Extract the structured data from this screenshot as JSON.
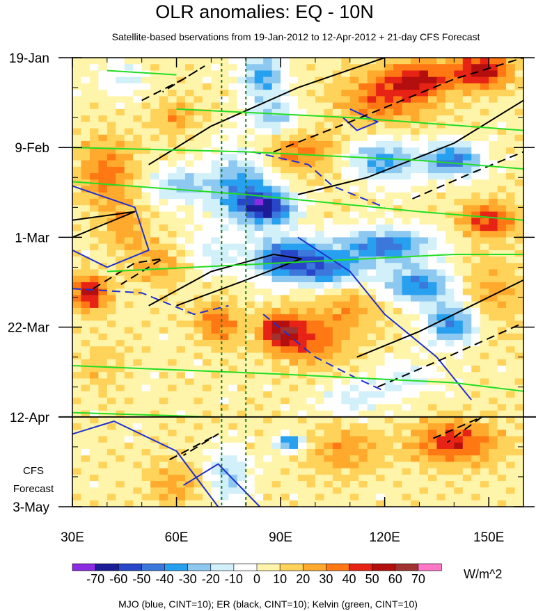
{
  "chart_data": {
    "type": "heatmap",
    "title": "OLR anomalies: EQ - 10N",
    "subtitle": "Satellite-based bservations from 19-Jan-2012 to 12-Apr-2012 + 21-day CFS Forecast",
    "x_axis": {
      "range": [
        30,
        160
      ],
      "ticks": [
        {
          "value": 30,
          "label": "30E"
        },
        {
          "value": 60,
          "label": "60E"
        },
        {
          "value": 90,
          "label": "90E"
        },
        {
          "value": 120,
          "label": "120E"
        },
        {
          "value": 150,
          "label": "150E"
        }
      ],
      "minor_step": 10
    },
    "y_axis": {
      "range_days": [
        0,
        105
      ],
      "direction": "downward",
      "ticks": [
        {
          "day": 0,
          "label": "19-Jan"
        },
        {
          "day": 21,
          "label": "9-Feb"
        },
        {
          "day": 42,
          "label": "1-Mar"
        },
        {
          "day": 63,
          "label": "22-Mar"
        },
        {
          "day": 84,
          "label": "12-Apr"
        },
        {
          "day": 105,
          "label": "3-May"
        }
      ],
      "minor_step_days": 7
    },
    "forecast_start_day": 84,
    "forecast_label_lines": [
      "CFS",
      "Forecast"
    ],
    "vertical_reference_lines": [
      73,
      80
    ],
    "colorbar": {
      "levels": [
        -70,
        -60,
        -50,
        -40,
        -30,
        -20,
        -10,
        0,
        10,
        20,
        30,
        40,
        50,
        60,
        70
      ],
      "colors": [
        "#8b2be2",
        "#1c1c96",
        "#2846c8",
        "#3c78dc",
        "#28a0f0",
        "#8cc8f0",
        "#d2f0fa",
        "#ffffff",
        "#fff5aa",
        "#ffd25a",
        "#ffaa2d",
        "#ff7814",
        "#e62314",
        "#b40f0f",
        "#a03232",
        "#ff78c8"
      ],
      "units": "W/m^2"
    },
    "footer": "MJO (blue, CINT=10); ER (black, CINT=10); Kelvin (green, CINT=10)",
    "anomaly_blobs": [
      {
        "lon": 35,
        "day": 55,
        "rlon": 5,
        "rday": 4,
        "value": 50
      },
      {
        "lon": 40,
        "day": 27,
        "rlon": 8,
        "rday": 8,
        "value": 30
      },
      {
        "lon": 45,
        "day": 40,
        "rlon": 6,
        "rday": 5,
        "value": 20
      },
      {
        "lon": 60,
        "day": 14,
        "rlon": 6,
        "rday": 4,
        "value": 20
      },
      {
        "lon": 55,
        "day": 48,
        "rlon": 8,
        "rday": 5,
        "value": 20
      },
      {
        "lon": 72,
        "day": 62,
        "rlon": 6,
        "rday": 5,
        "value": 30
      },
      {
        "lon": 90,
        "day": 64,
        "rlon": 6,
        "rday": 4,
        "value": 50
      },
      {
        "lon": 100,
        "day": 66,
        "rlon": 10,
        "rday": 6,
        "value": 30
      },
      {
        "lon": 108,
        "day": 92,
        "rlon": 10,
        "rday": 6,
        "value": 20
      },
      {
        "lon": 120,
        "day": 10,
        "rlon": 14,
        "rday": 6,
        "value": 30
      },
      {
        "lon": 130,
        "day": 5,
        "rlon": 10,
        "rday": 4,
        "value": 40
      },
      {
        "lon": 148,
        "day": 3,
        "rlon": 8,
        "rday": 4,
        "value": 50
      },
      {
        "lon": 150,
        "day": 38,
        "rlon": 8,
        "rday": 4,
        "value": 40
      },
      {
        "lon": 140,
        "day": 90,
        "rlon": 12,
        "rday": 5,
        "value": 40
      },
      {
        "lon": 95,
        "day": 22,
        "rlon": 10,
        "rday": 5,
        "value": 30
      },
      {
        "lon": 110,
        "day": 58,
        "rlon": 8,
        "rday": 5,
        "value": 20
      },
      {
        "lon": 150,
        "day": 56,
        "rlon": 10,
        "rday": 8,
        "value": 20
      },
      {
        "lon": 60,
        "day": 100,
        "rlon": 8,
        "rday": 5,
        "value": 20
      },
      {
        "lon": 38,
        "day": 72,
        "rlon": 6,
        "rday": 6,
        "value": 10
      },
      {
        "lon": 85,
        "day": 4,
        "rlon": 6,
        "rday": 5,
        "value": -40
      },
      {
        "lon": 88,
        "day": 14,
        "rlon": 8,
        "rday": 5,
        "value": -30
      },
      {
        "lon": 78,
        "day": 30,
        "rlon": 10,
        "rday": 8,
        "value": -40
      },
      {
        "lon": 86,
        "day": 35,
        "rlon": 8,
        "rday": 4,
        "value": -60
      },
      {
        "lon": 92,
        "day": 47,
        "rlon": 10,
        "rday": 5,
        "value": -60
      },
      {
        "lon": 105,
        "day": 50,
        "rlon": 10,
        "rday": 4,
        "value": -40
      },
      {
        "lon": 120,
        "day": 44,
        "rlon": 14,
        "rday": 4,
        "value": -50
      },
      {
        "lon": 130,
        "day": 53,
        "rlon": 10,
        "rday": 4,
        "value": -50
      },
      {
        "lon": 140,
        "day": 62,
        "rlon": 8,
        "rday": 5,
        "value": -50
      },
      {
        "lon": 120,
        "day": 24,
        "rlon": 10,
        "rday": 5,
        "value": -40
      },
      {
        "lon": 140,
        "day": 24,
        "rlon": 8,
        "rday": 4,
        "value": -50
      },
      {
        "lon": 75,
        "day": 98,
        "rlon": 6,
        "rday": 6,
        "value": -30
      },
      {
        "lon": 93,
        "day": 90,
        "rlon": 4,
        "rday": 2,
        "value": -50
      },
      {
        "lon": 60,
        "day": 30,
        "rlon": 8,
        "rday": 4,
        "value": -30
      },
      {
        "lon": 70,
        "day": 46,
        "rlon": 8,
        "rday": 5,
        "value": -20
      },
      {
        "lon": 125,
        "day": 75,
        "rlon": 10,
        "rday": 4,
        "value": -20
      },
      {
        "lon": 110,
        "day": 80,
        "rlon": 10,
        "rday": 4,
        "value": -20
      },
      {
        "lon": 45,
        "day": 5,
        "rlon": 6,
        "rday": 4,
        "value": -20
      }
    ],
    "contour_lines": [
      {
        "kind": "MJO",
        "color": "#1f2fd0",
        "dashed": false,
        "points": [
          [
            30,
            30
          ],
          [
            48,
            35
          ],
          [
            52,
            45
          ],
          [
            40,
            49
          ],
          [
            30,
            45
          ]
        ]
      },
      {
        "kind": "MJO",
        "color": "#1f2fd0",
        "dashed": false,
        "points": [
          [
            62,
            100
          ],
          [
            72,
            95
          ],
          [
            84,
            105
          ]
        ]
      },
      {
        "kind": "MJO",
        "color": "#1f2fd0",
        "dashed": false,
        "points": [
          [
            30,
            88
          ],
          [
            42,
            85
          ],
          [
            60,
            92
          ],
          [
            72,
            105
          ]
        ]
      },
      {
        "kind": "MJO",
        "color": "#1f2fd0",
        "dashed": false,
        "points": [
          [
            95,
            42
          ],
          [
            110,
            50
          ],
          [
            120,
            60
          ],
          [
            135,
            70
          ],
          [
            145,
            80
          ]
        ]
      },
      {
        "kind": "MJO",
        "color": "#1f2fd0",
        "dashed": true,
        "points": [
          [
            30,
            54
          ],
          [
            50,
            55
          ],
          [
            65,
            60
          ],
          [
            75,
            58
          ]
        ]
      },
      {
        "kind": "MJO",
        "color": "#1f2fd0",
        "dashed": true,
        "points": [
          [
            85,
            60
          ],
          [
            100,
            70
          ],
          [
            112,
            75
          ],
          [
            120,
            78
          ]
        ]
      },
      {
        "kind": "MJO",
        "color": "#1f2fd0",
        "dashed": true,
        "points": [
          [
            82,
            22
          ],
          [
            98,
            25
          ],
          [
            105,
            30
          ],
          [
            120,
            35
          ]
        ]
      },
      {
        "kind": "MJO",
        "color": "#1f2fd0",
        "dashed": false,
        "points": [
          [
            110,
            12
          ],
          [
            118,
            15
          ],
          [
            112,
            17
          ],
          [
            108,
            14
          ]
        ]
      },
      {
        "kind": "ER",
        "color": "#000000",
        "dashed": false,
        "points": [
          [
            52,
            25
          ],
          [
            70,
            16
          ],
          [
            95,
            7
          ],
          [
            120,
            0
          ]
        ]
      },
      {
        "kind": "ER",
        "color": "#000000",
        "dashed": false,
        "points": [
          [
            30,
            38
          ],
          [
            48,
            36
          ],
          [
            30,
            42
          ]
        ]
      },
      {
        "kind": "ER",
        "color": "#000000",
        "dashed": false,
        "points": [
          [
            52,
            58
          ],
          [
            70,
            50
          ],
          [
            88,
            46
          ],
          [
            96,
            47
          ],
          [
            80,
            52
          ],
          [
            60,
            58
          ]
        ]
      },
      {
        "kind": "ER",
        "color": "#000000",
        "dashed": false,
        "points": [
          [
            95,
            32
          ],
          [
            115,
            28
          ],
          [
            140,
            20
          ],
          [
            160,
            10
          ]
        ]
      },
      {
        "kind": "ER",
        "color": "#000000",
        "dashed": false,
        "points": [
          [
            112,
            70
          ],
          [
            130,
            64
          ],
          [
            160,
            52
          ]
        ]
      },
      {
        "kind": "ER",
        "color": "#000000",
        "dashed": true,
        "points": [
          [
            50,
            10
          ],
          [
            62,
            5
          ],
          [
            68,
            2
          ],
          [
            56,
            8
          ]
        ]
      },
      {
        "kind": "ER",
        "color": "#000000",
        "dashed": true,
        "points": [
          [
            36,
            54
          ],
          [
            48,
            48
          ],
          [
            56,
            47
          ],
          [
            44,
            53
          ]
        ]
      },
      {
        "kind": "ER",
        "color": "#000000",
        "dashed": true,
        "points": [
          [
            58,
            94
          ],
          [
            72,
            88
          ],
          [
            62,
            93
          ]
        ]
      },
      {
        "kind": "ER",
        "color": "#000000",
        "dashed": true,
        "points": [
          [
            88,
            22
          ],
          [
            110,
            15
          ],
          [
            140,
            5
          ],
          [
            160,
            0
          ]
        ]
      },
      {
        "kind": "ER",
        "color": "#000000",
        "dashed": true,
        "points": [
          [
            128,
            33
          ],
          [
            145,
            27
          ],
          [
            160,
            22
          ]
        ]
      },
      {
        "kind": "ER",
        "color": "#000000",
        "dashed": true,
        "points": [
          [
            118,
            77
          ],
          [
            138,
            70
          ],
          [
            160,
            62
          ]
        ]
      },
      {
        "kind": "ER",
        "color": "#000000",
        "dashed": true,
        "points": [
          [
            134,
            89
          ],
          [
            148,
            84
          ],
          [
            138,
            90
          ]
        ]
      },
      {
        "kind": "Kelvin",
        "color": "#22dd22",
        "dashed": false,
        "points": [
          [
            30,
            21
          ],
          [
            80,
            22
          ],
          [
            130,
            24
          ],
          [
            160,
            26
          ]
        ]
      },
      {
        "kind": "Kelvin",
        "color": "#22dd22",
        "dashed": false,
        "points": [
          [
            30,
            29
          ],
          [
            80,
            32
          ],
          [
            130,
            36
          ],
          [
            160,
            38
          ]
        ]
      },
      {
        "kind": "Kelvin",
        "color": "#22dd22",
        "dashed": false,
        "points": [
          [
            40,
            50
          ],
          [
            90,
            48
          ],
          [
            140,
            46
          ],
          [
            160,
            46
          ]
        ]
      },
      {
        "kind": "Kelvin",
        "color": "#22dd22",
        "dashed": false,
        "points": [
          [
            30,
            72
          ],
          [
            90,
            74
          ],
          [
            140,
            76
          ],
          [
            160,
            78
          ]
        ]
      },
      {
        "kind": "Kelvin",
        "color": "#22dd22",
        "dashed": false,
        "points": [
          [
            60,
            12
          ],
          [
            110,
            14
          ],
          [
            160,
            17
          ]
        ]
      },
      {
        "kind": "Kelvin",
        "color": "#22dd22",
        "dashed": false,
        "points": [
          [
            40,
            3
          ],
          [
            60,
            4
          ]
        ]
      },
      {
        "kind": "Kelvin",
        "color": "#22dd22",
        "dashed": false,
        "points": [
          [
            30,
            83
          ],
          [
            70,
            84
          ]
        ]
      }
    ]
  }
}
